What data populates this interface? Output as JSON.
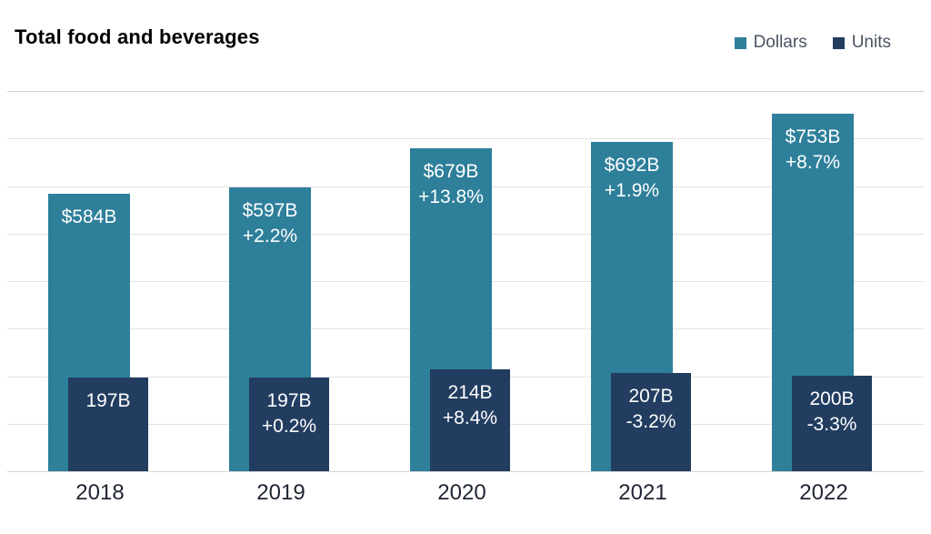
{
  "chart_data": {
    "type": "bar",
    "title": "Total food and beverages",
    "categories": [
      "2018",
      "2019",
      "2020",
      "2021",
      "2022"
    ],
    "series": [
      {
        "name": "Dollars",
        "color": "#2e7f9a",
        "unit": "B",
        "values": [
          584,
          597,
          679,
          692,
          753
        ],
        "labels": [
          [
            "$584B"
          ],
          [
            "$597B",
            "+2.2%"
          ],
          [
            "$679B",
            "+13.8%"
          ],
          [
            "$692B",
            "+1.9%"
          ],
          [
            "$753B",
            "+8.7%"
          ]
        ]
      },
      {
        "name": "Units",
        "color": "#223d60",
        "unit": "B",
        "values": [
          197,
          197,
          214,
          207,
          200
        ],
        "labels": [
          [
            "197B"
          ],
          [
            "197B",
            "+0.2%"
          ],
          [
            "214B",
            "+8.4%"
          ],
          [
            "207B",
            "-3.2%"
          ],
          [
            "200B",
            "-3.3%"
          ]
        ]
      }
    ],
    "ylim": [
      0,
      800
    ],
    "gridline_step": 100,
    "grid": true,
    "legend_position": "top-right",
    "label_color": "#ffffff"
  }
}
